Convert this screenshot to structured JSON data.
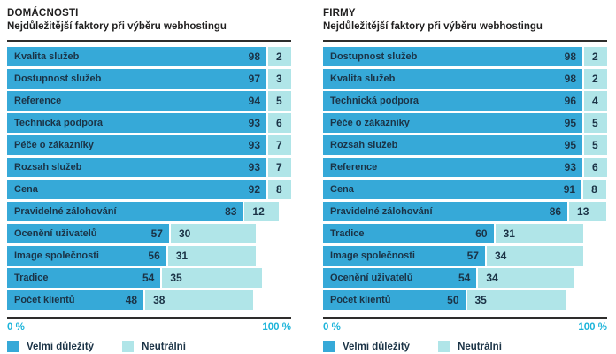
{
  "colors": {
    "bar_primary": "#36a9d8",
    "bar_secondary": "#b0e5e8",
    "text_dark": "#1b3346",
    "title_text": "#201f1f",
    "axis_line": "#2e2d2c",
    "axis_label": "#1cb4da"
  },
  "axis": {
    "min": "0 %",
    "max": "100 %"
  },
  "legend": {
    "primary": "Velmi důležitý",
    "secondary": "Neutrální"
  },
  "chart_data": [
    {
      "type": "bar",
      "orientation": "horizontal",
      "stacked": true,
      "title": "DOMÁCNOSTI",
      "subtitle": "Nejdůležitější faktory při výběru webhostingu",
      "xlabel": "",
      "ylabel": "",
      "xlim": [
        0,
        100
      ],
      "grid": false,
      "legend_position": "bottom",
      "categories": [
        "Kvalita služeb",
        "Dostupnost služeb",
        "Reference",
        "Technická podpora",
        "Péče o zákazníky",
        "Rozsah služeb",
        "Cena",
        "Pravidelné zálohování",
        "Ocenění uživatelů",
        "Image společnosti",
        "Tradice",
        "Počet klientů"
      ],
      "series": [
        {
          "name": "Velmi důležitý",
          "values": [
            98,
            97,
            94,
            93,
            93,
            93,
            92,
            83,
            57,
            56,
            54,
            48
          ]
        },
        {
          "name": "Neutrální",
          "values": [
            2,
            3,
            5,
            6,
            7,
            7,
            8,
            12,
            30,
            31,
            35,
            38
          ]
        }
      ]
    },
    {
      "type": "bar",
      "orientation": "horizontal",
      "stacked": true,
      "title": "FIRMY",
      "subtitle": "Nejdůležitější faktory při výběru webhostingu",
      "xlabel": "",
      "ylabel": "",
      "xlim": [
        0,
        100
      ],
      "grid": false,
      "legend_position": "bottom",
      "categories": [
        "Dostupnost služeb",
        "Kvalita služeb",
        "Technická podpora",
        "Péče o zákazníky",
        "Rozsah služeb",
        "Reference",
        "Cena",
        "Pravidelné zálohování",
        "Tradice",
        "Image společnosti",
        "Ocenění uživatelů",
        "Počet klientů"
      ],
      "series": [
        {
          "name": "Velmi důležitý",
          "values": [
            98,
            98,
            96,
            95,
            95,
            93,
            91,
            86,
            60,
            57,
            54,
            50
          ]
        },
        {
          "name": "Neutrální",
          "values": [
            2,
            2,
            4,
            5,
            5,
            6,
            8,
            13,
            31,
            34,
            34,
            35
          ]
        }
      ]
    }
  ]
}
